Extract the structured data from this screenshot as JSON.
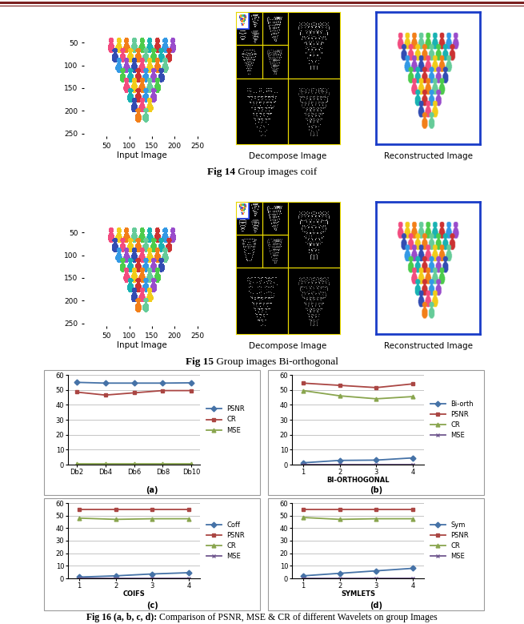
{
  "figures": [
    {
      "caption_label": "Fig 14",
      "caption": "Group images coif",
      "panels": [
        {
          "label": "Input Image",
          "xlim": [
            0,
            256
          ],
          "ylim": [
            256,
            0
          ],
          "xticks": [
            50,
            100,
            150,
            200,
            250
          ],
          "yticks": [
            50,
            100,
            150,
            200,
            250
          ]
        },
        {
          "label": "Decompose Image"
        },
        {
          "label": "Reconstructed Image"
        }
      ]
    },
    {
      "caption_label": "Fig 15",
      "caption": "Group images Bi-orthogonal",
      "panels": [
        {
          "label": "Input Image",
          "xlim": [
            0,
            256
          ],
          "ylim": [
            256,
            0
          ],
          "xticks": [
            50,
            100,
            150,
            200,
            250
          ],
          "yticks": [
            50,
            100,
            150,
            200,
            250
          ]
        },
        {
          "label": "Decompose Image"
        },
        {
          "label": "Reconstructed Image"
        }
      ]
    }
  ],
  "chart_caption_label": "Fig 16 (a, b, c, d):",
  "chart_caption": "Comparison of PSNR, MSE & CR of different Wavelets on group Images",
  "chart_data": [
    {
      "type": "line",
      "panel": "(a)",
      "categories": [
        "Db2",
        "Db4",
        "Db6",
        "Db8",
        "Db10"
      ],
      "ylim": [
        0,
        60
      ],
      "yticks": [
        0,
        10,
        20,
        30,
        40,
        50,
        60
      ],
      "grid": true,
      "legend": "right",
      "series": [
        {
          "name": "PSNR",
          "color": "#4572A7",
          "marker": "diamond",
          "values": [
            55,
            54.5,
            54.5,
            54.5,
            54.7
          ]
        },
        {
          "name": "CR",
          "color": "#AA4643",
          "marker": "square",
          "values": [
            48.5,
            46.5,
            48,
            49.5,
            49.5
          ]
        },
        {
          "name": "MSE",
          "color": "#89A54E",
          "marker": "triangle",
          "values": [
            0.3,
            0.3,
            0.3,
            0.3,
            0.3
          ]
        }
      ]
    },
    {
      "type": "line",
      "panel": "(b)",
      "x_label": "BI-ORTHOGONAL",
      "categories": [
        "1",
        "2",
        "3",
        "4"
      ],
      "ylim": [
        0,
        60
      ],
      "yticks": [
        0,
        10,
        20,
        30,
        40,
        50,
        60
      ],
      "grid": true,
      "legend": "right",
      "series": [
        {
          "name": "Bi-orth",
          "color": "#4572A7",
          "marker": "diamond",
          "values": [
            1.2,
            2.8,
            3,
            4.5
          ]
        },
        {
          "name": "PSNR",
          "color": "#AA4643",
          "marker": "square",
          "values": [
            54.5,
            53,
            51.5,
            54
          ]
        },
        {
          "name": "CR",
          "color": "#89A54E",
          "marker": "triangle",
          "values": [
            49.5,
            46,
            44,
            45.5
          ]
        },
        {
          "name": "MSE",
          "color": "#71588F",
          "marker": "x",
          "values": [
            0.2,
            0.2,
            0.2,
            0.2
          ]
        }
      ]
    },
    {
      "type": "line",
      "panel": "(c)",
      "x_label": "COIFS",
      "categories": [
        "1",
        "2",
        "3",
        "4"
      ],
      "ylim": [
        0,
        60
      ],
      "yticks": [
        0,
        10,
        20,
        30,
        40,
        50,
        60
      ],
      "grid": true,
      "legend": "right",
      "series": [
        {
          "name": "Coff",
          "color": "#4572A7",
          "marker": "diamond",
          "values": [
            1,
            2,
            3.5,
            4.5
          ]
        },
        {
          "name": "PSNR",
          "color": "#AA4643",
          "marker": "square",
          "values": [
            55,
            55,
            55,
            55
          ]
        },
        {
          "name": "CR",
          "color": "#89A54E",
          "marker": "triangle",
          "values": [
            48,
            47,
            47.5,
            47.5
          ]
        },
        {
          "name": "MSE",
          "color": "#71588F",
          "marker": "x",
          "values": [
            0.3,
            0.3,
            0.3,
            0.3
          ]
        }
      ]
    },
    {
      "type": "line",
      "panel": "(d)",
      "x_label": "SYMLETS",
      "categories": [
        "1",
        "2",
        "3",
        "4"
      ],
      "ylim": [
        0,
        60
      ],
      "yticks": [
        0,
        10,
        20,
        30,
        40,
        50,
        60
      ],
      "grid": true,
      "legend": "right",
      "series": [
        {
          "name": "Sym",
          "color": "#4572A7",
          "marker": "diamond",
          "values": [
            2,
            4,
            6,
            8
          ]
        },
        {
          "name": "PSNR",
          "color": "#AA4643",
          "marker": "square",
          "values": [
            55,
            55,
            55,
            55
          ]
        },
        {
          "name": "CR",
          "color": "#89A54E",
          "marker": "triangle",
          "values": [
            48.5,
            47,
            47.5,
            47.5
          ]
        },
        {
          "name": "MSE",
          "color": "#71588F",
          "marker": "x",
          "values": [
            0.3,
            0.3,
            0.3,
            0.3
          ]
        }
      ]
    }
  ]
}
